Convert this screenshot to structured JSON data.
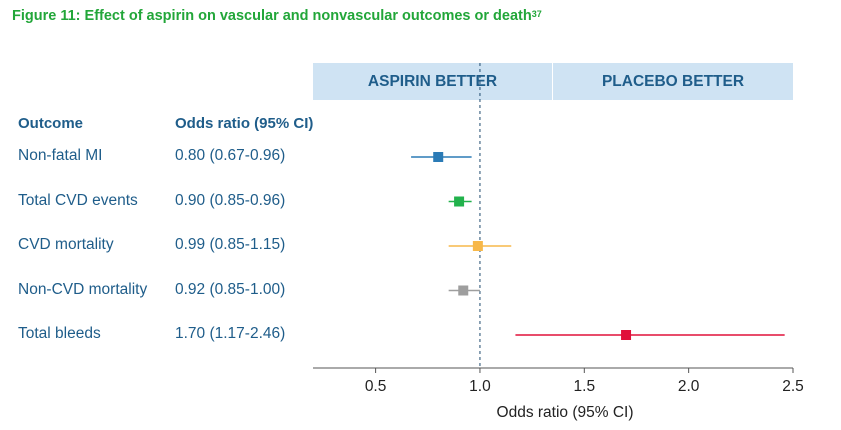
{
  "figure": {
    "title": "Figure 11: Effect of aspirin on vascular and nonvascular outcomes or death",
    "title_ref": "37"
  },
  "bands": {
    "left": "ASPIRIN BETTER",
    "right": "PLACEBO BETTER"
  },
  "headers": {
    "outcome": "Outcome",
    "or": "Odds ratio (95% CI)"
  },
  "chart_data": {
    "type": "forest",
    "xlabel": "Odds ratio (95% CI)",
    "xlim": [
      0.2,
      2.5
    ],
    "xticks": [
      0.5,
      1.0,
      1.5,
      2.0,
      2.5
    ],
    "xtick_labels": [
      "0.5",
      "1.0",
      "1.5",
      "2.0",
      "2.5"
    ],
    "reference_line": 1.0,
    "rows": [
      {
        "outcome": "Non-fatal MI",
        "or_text": "0.80 (0.67-0.96)",
        "or": 0.8,
        "ci_low": 0.67,
        "ci_high": 0.96,
        "color": "#2b7bb6"
      },
      {
        "outcome": "Total CVD events",
        "or_text": "0.90 (0.85-0.96)",
        "or": 0.9,
        "ci_low": 0.85,
        "ci_high": 0.96,
        "color": "#22b24c"
      },
      {
        "outcome": "CVD mortality",
        "or_text": "0.99 (0.85-1.15)",
        "or": 0.99,
        "ci_low": 0.85,
        "ci_high": 1.15,
        "color": "#f7b84a"
      },
      {
        "outcome": "Non-CVD mortality",
        "or_text": "0.92 (0.85-1.00)",
        "or": 0.92,
        "ci_low": 0.85,
        "ci_high": 1.0,
        "color": "#9e9e9e"
      },
      {
        "outcome": "Total bleeds",
        "or_text": "1.70 (1.17-2.46)",
        "or": 1.7,
        "ci_low": 1.17,
        "ci_high": 2.46,
        "color": "#e0103a"
      }
    ]
  }
}
